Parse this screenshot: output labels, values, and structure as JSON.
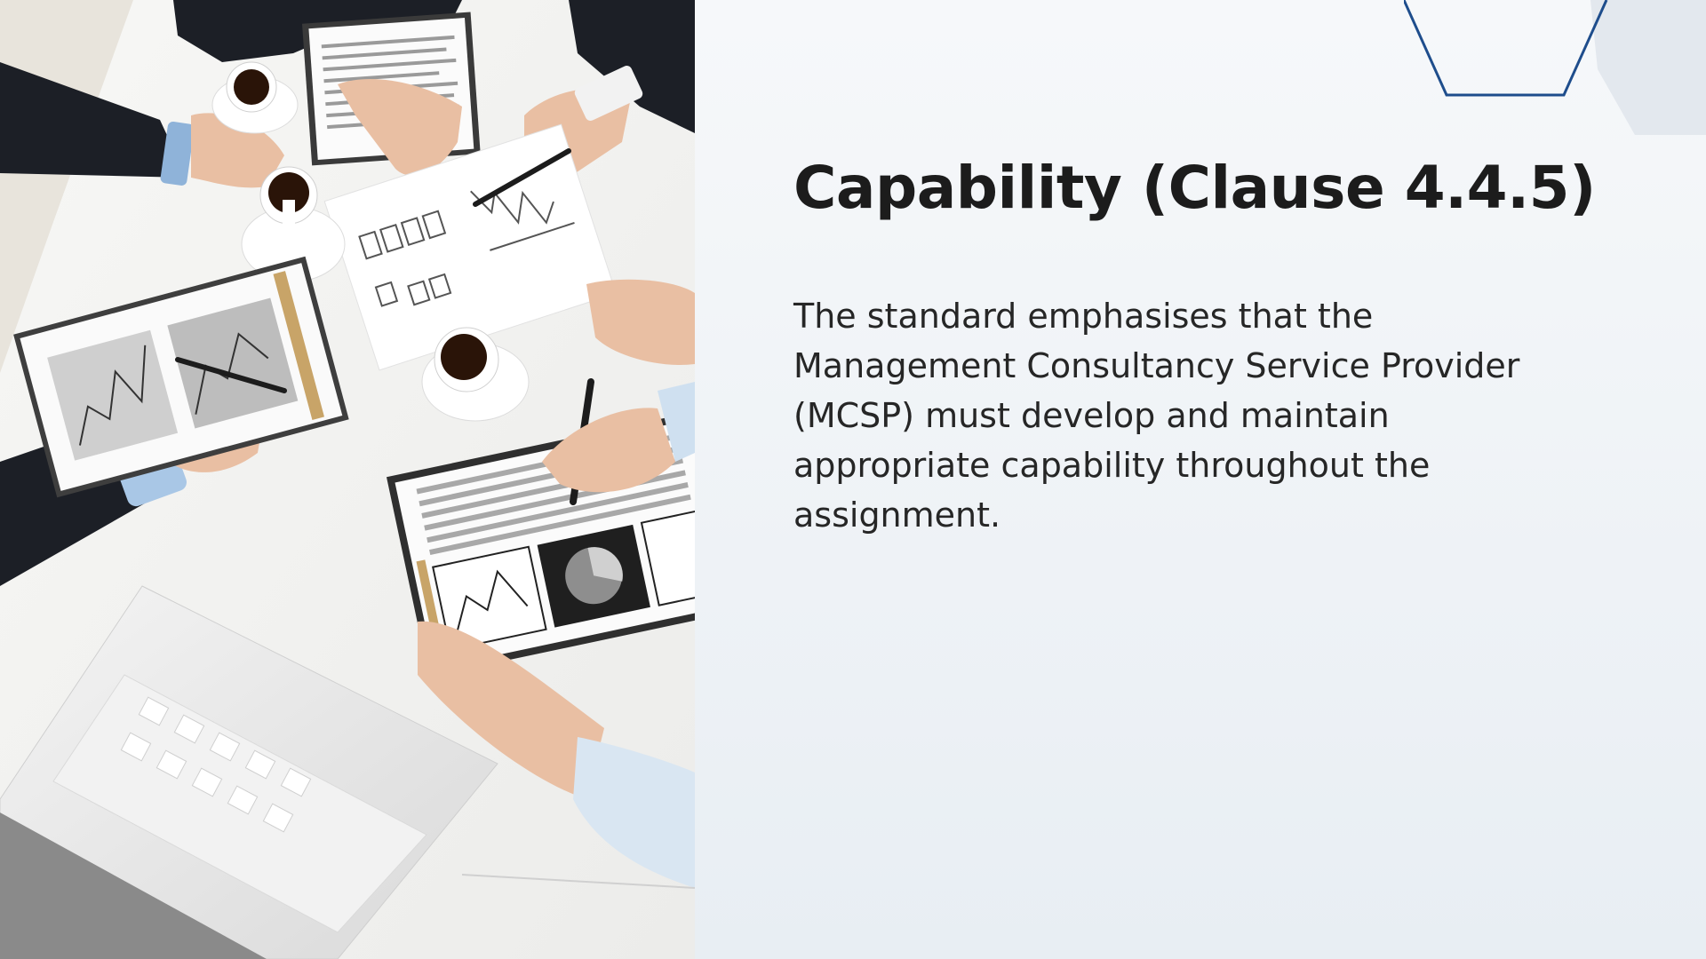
{
  "slide": {
    "title": "Capability (Clause 4.4.5)",
    "body": "The standard emphasises that the Management Consultancy Service Provider (MCSP) must develop and maintain appropriate capability throughout the assignment."
  },
  "photo": {
    "subject": "business-meeting-photo-icon"
  },
  "colors": {
    "accent": "#1e4d8c",
    "title": "#1c1c1c",
    "body": "#262626",
    "background": "#eef2f6"
  }
}
